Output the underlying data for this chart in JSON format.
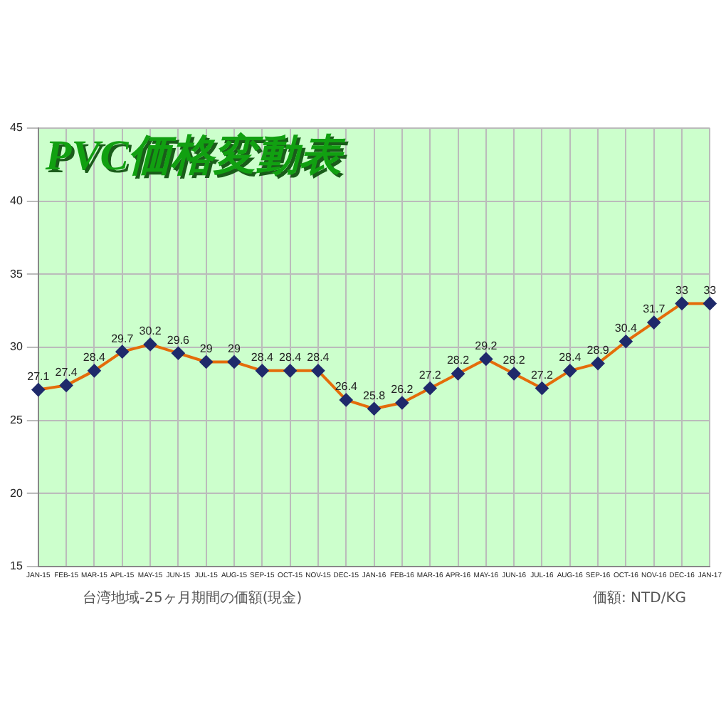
{
  "chart_data": {
    "type": "line",
    "title": "PVC価格変動表",
    "categories": [
      "JAN-15",
      "FEB-15",
      "MAR-15",
      "APL-15",
      "MAY-15",
      "JUN-15",
      "JUL-15",
      "AUG-15",
      "SEP-15",
      "OCT-15",
      "NOV-15",
      "DEC-15",
      "JAN-16",
      "FEB-16",
      "MAR-16",
      "APR-16",
      "MAY-16",
      "JUN-16",
      "JUL-16",
      "AUG-16",
      "SEP-16",
      "OCT-16",
      "NOV-16",
      "DEC-16",
      "JAN-17"
    ],
    "series": [
      {
        "color": "#e46c0a",
        "values": [
          27.1,
          27.4,
          28.4,
          29.7,
          30.2,
          29.6,
          29,
          29,
          28.4,
          28.4,
          28.4,
          26.4,
          25.8,
          26.2,
          27.2,
          28.2,
          29.2,
          28.2,
          27.2,
          28.4,
          28.9,
          30.4,
          31.7,
          33,
          33
        ]
      }
    ],
    "ylim": [
      15,
      45
    ],
    "yticks": [
      15,
      20,
      25,
      30,
      35,
      40,
      45
    ],
    "grid": true,
    "marker": "diamond",
    "line_style": "solid",
    "data_labels": true,
    "legend": false,
    "annotations": [
      "台湾地域-25ヶ月期間の価額(現金)",
      "価額: NTD/KG"
    ]
  }
}
